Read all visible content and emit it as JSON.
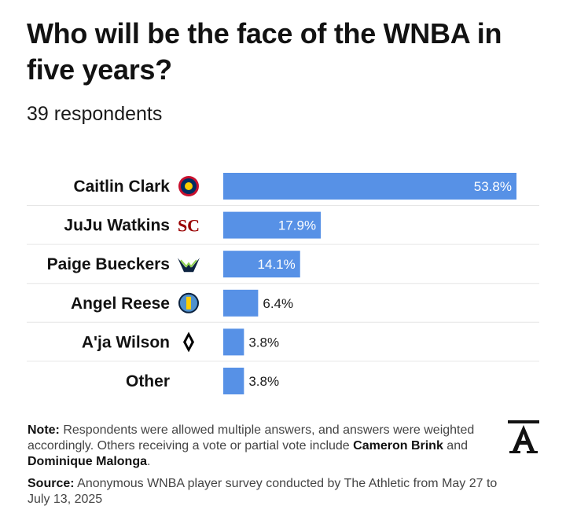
{
  "title": "Who will be the face of the WNBA in five years?",
  "subtitle": "39 respondents",
  "colors": {
    "bar": "#5791e6",
    "text": "#121212",
    "muted": "#444444",
    "divider": "#e6e6e6"
  },
  "chart_data": {
    "type": "bar",
    "orientation": "horizontal",
    "categories": [
      "Caitlin Clark",
      "JuJu Watkins",
      "Paige Bueckers",
      "Angel Reese",
      "A'ja Wilson",
      "Other"
    ],
    "values": [
      53.8,
      17.9,
      14.1,
      6.4,
      3.8,
      3.8
    ],
    "value_labels": [
      "53.8%",
      "17.9%",
      "14.1%",
      "6.4%",
      "3.8%",
      "3.8%"
    ],
    "icons": [
      "indiana-fever-logo-icon",
      "usc-logo-icon",
      "dallas-wings-logo-icon",
      "chicago-sky-logo-icon",
      "las-vegas-aces-logo-icon",
      ""
    ],
    "xlim": [
      0,
      60
    ],
    "grid": false,
    "legend": "none"
  },
  "notes": {
    "note_label": "Note:",
    "note_text": "Respondents were allowed multiple answers, and answers were weighted accordingly. Others receiving a vote or partial vote include",
    "name1": "Cameron Brink",
    "and_text": "and",
    "name2": "Dominique Malonga",
    "period": ".",
    "source_label": "Source:",
    "source_text": "Anonymous WNBA player survey conducted by The Athletic from May 27 to July 13, 2025"
  },
  "logo_icon": "the-athletic-logo-icon"
}
